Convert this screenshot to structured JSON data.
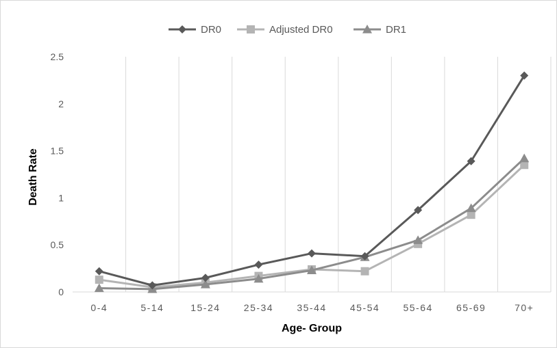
{
  "chart_data": {
    "type": "line",
    "categories": [
      "0-4",
      "5-14",
      "15-24",
      "25-34",
      "35-44",
      "45-54",
      "55-64",
      "65-69",
      "70+"
    ],
    "series": [
      {
        "name": "DR0",
        "values": [
          0.22,
          0.07,
          0.15,
          0.29,
          0.41,
          0.38,
          0.87,
          1.39,
          2.3
        ],
        "color": "#595959",
        "marker": "diamond"
      },
      {
        "name": "Adjusted DR0",
        "values": [
          0.13,
          0.05,
          0.1,
          0.17,
          0.24,
          0.22,
          0.51,
          0.82,
          1.35
        ],
        "color": "#b4b4b4",
        "marker": "square"
      },
      {
        "name": "DR1",
        "values": [
          0.04,
          0.03,
          0.08,
          0.14,
          0.23,
          0.37,
          0.55,
          0.89,
          1.42
        ],
        "color": "#8c8c8c",
        "marker": "triangle"
      }
    ],
    "title": "",
    "xlabel": "Age- Group",
    "ylabel": "Death Rate",
    "ylim": [
      0,
      2.5
    ],
    "yticks": [
      "0",
      "0.5",
      "1",
      "1.5",
      "2",
      "2.5"
    ],
    "grid": "vertical",
    "legend": "top-center"
  }
}
